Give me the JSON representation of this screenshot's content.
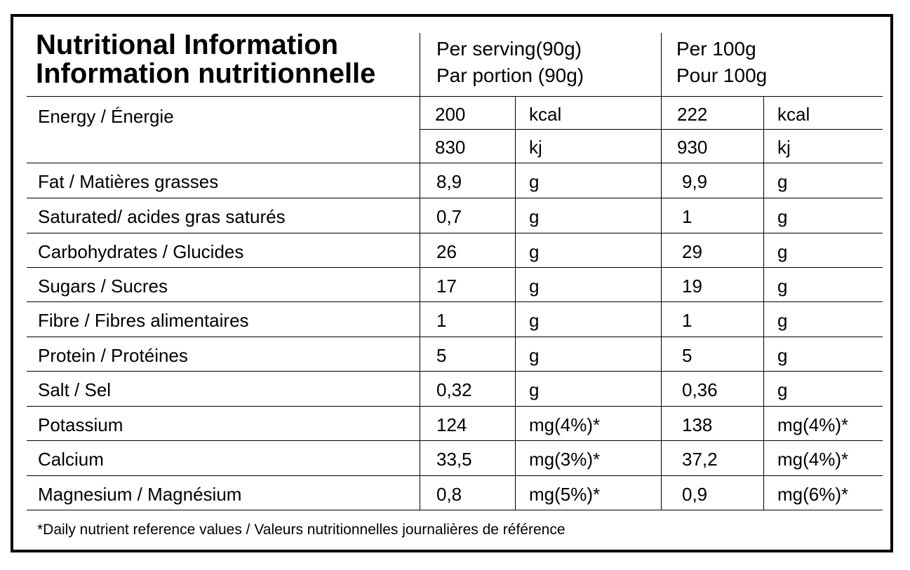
{
  "title": {
    "line1": "Nutritional Information",
    "line2": "Information nutritionnelle"
  },
  "columns": {
    "per_serving": {
      "line1": "Per serving(90g)",
      "line2": "Par portion (90g)"
    },
    "per_100g": {
      "line1": "Per 100g",
      "line2": "Pour 100g"
    }
  },
  "energy": {
    "label": "Energy / Énergie",
    "kcal": {
      "serving": "200",
      "unit_serving": "kcal",
      "per100": "222",
      "unit_per100": "kcal"
    },
    "kj": {
      "serving": "830",
      "unit_serving": "kj",
      "per100": "930",
      "unit_per100": "kj"
    }
  },
  "rows": [
    {
      "label": "Fat / Matières grasses",
      "serving": "8,9",
      "unit_serving": "g",
      "per100": "9,9",
      "unit_per100": "g"
    },
    {
      "label": "Saturated/ acides gras saturés",
      "serving": "0,7",
      "unit_serving": "g",
      "per100": "1",
      "unit_per100": "g"
    },
    {
      "label": "Carbohydrates / Glucides",
      "serving": "26",
      "unit_serving": "g",
      "per100": "29",
      "unit_per100": "g"
    },
    {
      "label": "Sugars / Sucres",
      "serving": "17",
      "unit_serving": "g",
      "per100": "19",
      "unit_per100": "g"
    },
    {
      "label": "Fibre / Fibres alimentaires",
      "serving": "1",
      "unit_serving": "g",
      "per100": "1",
      "unit_per100": "g"
    },
    {
      "label": "Protein / Protéines",
      "serving": "5",
      "unit_serving": "g",
      "per100": "5",
      "unit_per100": "g"
    },
    {
      "label": "Salt / Sel",
      "serving": "0,32",
      "unit_serving": "g",
      "per100": "0,36",
      "unit_per100": "g"
    },
    {
      "label": "Potassium",
      "serving": "124",
      "unit_serving": "mg(4%)*",
      "per100": "138",
      "unit_per100": "mg(4%)*"
    },
    {
      "label": "Calcium",
      "serving": "33,5",
      "unit_serving": "mg(3%)*",
      "per100": "37,2",
      "unit_per100": "mg(4%)*"
    },
    {
      "label": "Magnesium / Magnésium",
      "serving": "0,8",
      "unit_serving": "mg(5%)*",
      "per100": "0,9",
      "unit_per100": "mg(6%)*"
    }
  ],
  "footnote": "*Daily nutrient reference values / Valeurs nutritionnelles journalières de référence"
}
